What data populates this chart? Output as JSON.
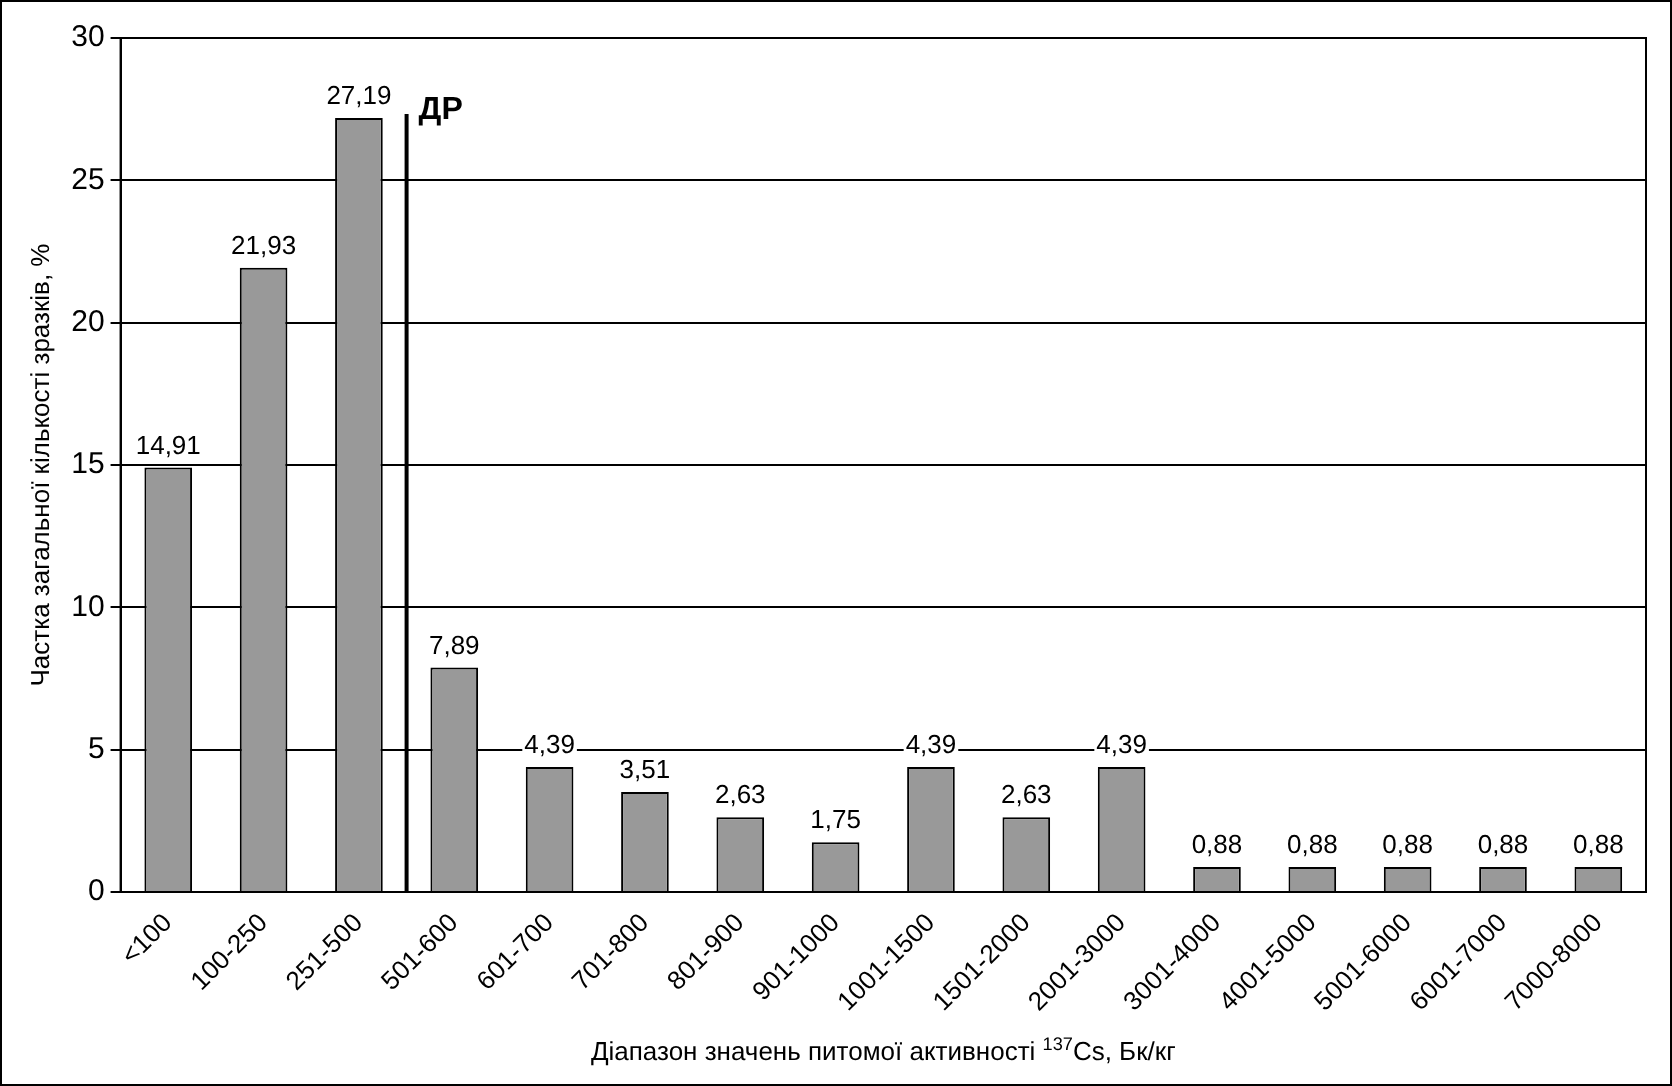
{
  "chart_data": {
    "type": "bar",
    "xlabel": "Діапазон значень питомої активності $^{137}$Cs, Бк/кг",
    "ylabel": "Частка загальної кількості зразків, %",
    "categories": [
      "<100",
      "100-250",
      "251-500",
      "501-600",
      "601-700",
      "701-800",
      "801-900",
      "901-1000",
      "1001-1500",
      "1501-2000",
      "2001-3000",
      "3001-4000",
      "4001-5000",
      "5001-6000",
      "6001-7000",
      "7000-8000"
    ],
    "values": [
      14.91,
      21.93,
      27.19,
      7.89,
      4.39,
      3.51,
      2.63,
      1.75,
      4.39,
      2.63,
      4.39,
      0.88,
      0.88,
      0.88,
      0.88,
      0.88
    ],
    "value_labels": [
      "14,91",
      "21,93",
      "27,19",
      "7,89",
      "4,39",
      "3,51",
      "2,63",
      "1,75",
      "4,39",
      "2,63",
      "4,39",
      "0,88",
      "0,88",
      "0,88",
      "0,88",
      "0,88"
    ],
    "color": "#999999",
    "ylim": [
      0,
      30
    ],
    "yticks": [
      0,
      5,
      10,
      15,
      20,
      25,
      30
    ],
    "grid": "y",
    "ref_lines": [
      {
        "axis": "x",
        "value": "501-600",
        "label": "ДР",
        "color": "#000000"
      }
    ]
  }
}
